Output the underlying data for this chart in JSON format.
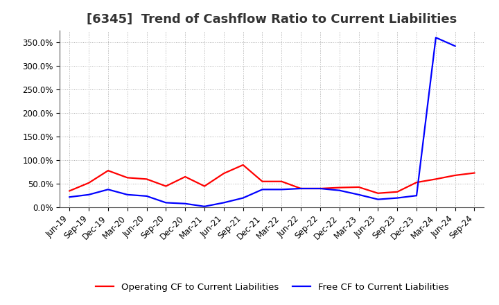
{
  "title": "[6345]  Trend of Cashflow Ratio to Current Liabilities",
  "x_labels": [
    "Jun-19",
    "Sep-19",
    "Dec-19",
    "Mar-20",
    "Jun-20",
    "Sep-20",
    "Dec-20",
    "Mar-21",
    "Jun-21",
    "Sep-21",
    "Dec-21",
    "Mar-22",
    "Jun-22",
    "Sep-22",
    "Dec-22",
    "Mar-23",
    "Jun-23",
    "Sep-23",
    "Dec-23",
    "Mar-24",
    "Jun-24",
    "Sep-24"
  ],
  "operating_cf": [
    0.35,
    0.52,
    0.78,
    0.63,
    0.6,
    0.45,
    0.65,
    0.45,
    0.72,
    0.9,
    0.55,
    0.55,
    0.4,
    0.4,
    0.42,
    0.43,
    0.3,
    0.33,
    0.53,
    0.6,
    0.68,
    0.73
  ],
  "free_cf": [
    0.22,
    0.27,
    0.38,
    0.27,
    0.24,
    0.1,
    0.08,
    0.02,
    0.1,
    0.2,
    0.38,
    0.38,
    0.4,
    0.4,
    0.36,
    0.27,
    0.17,
    0.2,
    0.25,
    3.6,
    3.42,
    null
  ],
  "operating_cf_color": "#ff0000",
  "free_cf_color": "#0000ff",
  "background_color": "#ffffff",
  "grid_color": "#999999",
  "ylim": [
    0.0,
    3.75
  ],
  "yticks": [
    0.0,
    0.5,
    1.0,
    1.5,
    2.0,
    2.5,
    3.0,
    3.5
  ],
  "legend_op": "Operating CF to Current Liabilities",
  "legend_free": "Free CF to Current Liabilities",
  "title_fontsize": 13,
  "tick_fontsize": 8.5,
  "legend_fontsize": 9.5,
  "linewidth": 1.6
}
